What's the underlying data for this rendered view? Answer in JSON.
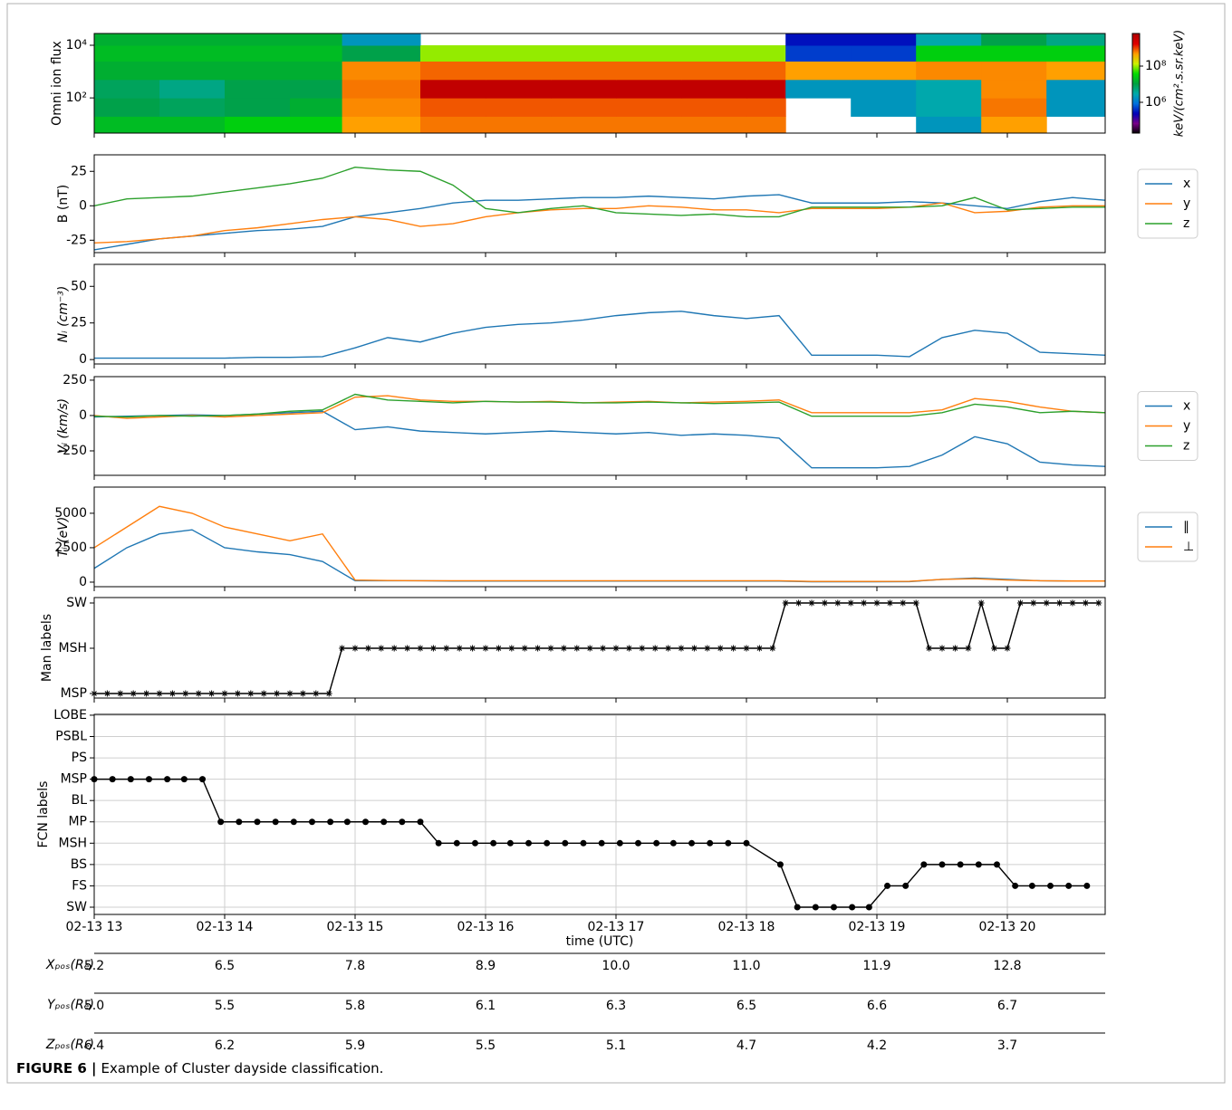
{
  "chart_data": [
    {
      "type": "heatmap",
      "ylabel": "Omni ion flux",
      "yscale": "log",
      "x_bins": [
        13,
        13.5,
        14,
        14.5,
        14.9,
        15.5,
        16,
        16.5,
        17,
        17.5,
        18,
        18.3,
        18.8,
        19.3,
        19.8,
        20.3,
        20.75
      ],
      "y_bins": [
        4.6,
        20,
        100,
        500,
        2500,
        10000,
        28000
      ],
      "values": [
        [
          20000000.0,
          20000000.0,
          30000000.0,
          30000000.0,
          500000000.0,
          700000000.0,
          700000000.0,
          700000000.0,
          700000000.0,
          700000000.0,
          700000000.0,
          null,
          null,
          2000000.0,
          500000000.0,
          null
        ],
        [
          10000000.0,
          8000000.0,
          10000000.0,
          15000000.0,
          600000000.0,
          900000000.0,
          900000000.0,
          900000000.0,
          900000000.0,
          900000000.0,
          900000000.0,
          null,
          2000000.0,
          3000000.0,
          700000000.0,
          2000000.0
        ],
        [
          8000000.0,
          5000000.0,
          10000000.0,
          10000000.0,
          700000000.0,
          4000000000.0,
          4000000000.0,
          4000000000.0,
          4000000000.0,
          4000000000.0,
          4000000000.0,
          2000000.0,
          2000000.0,
          3000000.0,
          600000000.0,
          2000000.0
        ],
        [
          15000000.0,
          15000000.0,
          15000000.0,
          15000000.0,
          600000000.0,
          800000000.0,
          800000000.0,
          800000000.0,
          800000000.0,
          800000000.0,
          800000000.0,
          500000000.0,
          500000000.0,
          600000000.0,
          600000000.0,
          500000000.0
        ],
        [
          20000000.0,
          20000000.0,
          20000000.0,
          20000000.0,
          10000000.0,
          100000000.0,
          100000000.0,
          100000000.0,
          100000000.0,
          100000000.0,
          100000000.0,
          500000.0,
          500000.0,
          30000000.0,
          30000000.0,
          30000000.0
        ],
        [
          15000000.0,
          15000000.0,
          15000000.0,
          15000000.0,
          2000000.0,
          null,
          null,
          null,
          null,
          null,
          null,
          300000.0,
          300000.0,
          3000000.0,
          10000000.0,
          5000000.0
        ]
      ],
      "xlim": [
        13,
        20.75
      ],
      "ylim": [
        4.6,
        28000
      ],
      "xticks": [
        13,
        14,
        15,
        16,
        17,
        18,
        19,
        20
      ],
      "yticks": [
        {
          "value": 100,
          "label": "10²"
        },
        {
          "value": 10000,
          "label": "10⁴"
        }
      ],
      "zscale": "log",
      "zlim": [
        20000,
        6300000000
      ],
      "zticks": [
        {
          "value": 1000000,
          "label": "10⁶"
        },
        {
          "value": 100000000,
          "label": "10⁸"
        }
      ],
      "zlabel": "keV/(cm².s.sr.keV)",
      "colormap": [
        "#000000",
        "#780088",
        "#0000b8",
        "#0070dd",
        "#00aaaa",
        "#00a040",
        "#00dd00",
        "#ccf000",
        "#ffa000",
        "#e00000",
        "#b00000"
      ],
      "over_color": "#c8c8c8"
    },
    {
      "type": "line",
      "ylabel": "B (nT)",
      "legend": "right",
      "x": [
        13,
        13.25,
        13.5,
        13.75,
        14,
        14.25,
        14.5,
        14.75,
        15,
        15.25,
        15.5,
        15.75,
        16,
        16.25,
        16.5,
        16.75,
        17,
        17.25,
        17.5,
        17.75,
        18,
        18.25,
        18.5,
        18.75,
        19,
        19.25,
        19.5,
        19.75,
        20,
        20.25,
        20.5,
        20.75
      ],
      "series": [
        {
          "name": "x",
          "color": "#1f77b4",
          "values": [
            -32,
            -28,
            -24,
            -22,
            -20,
            -18,
            -17,
            -15,
            -8,
            -5,
            -2,
            2,
            4,
            4,
            5,
            6,
            6,
            7,
            6,
            5,
            7,
            8,
            2,
            2,
            2,
            3,
            2,
            0,
            -2,
            3,
            6,
            4
          ]
        },
        {
          "name": "y",
          "color": "#ff7f0e",
          "values": [
            -27,
            -26,
            -24,
            -22,
            -18,
            -16,
            -13,
            -10,
            -8,
            -10,
            -15,
            -13,
            -8,
            -5,
            -3,
            -2,
            -2,
            0,
            -1,
            -3,
            -3,
            -5,
            -2,
            -2,
            -2,
            -1,
            2,
            -5,
            -4,
            -1,
            0,
            0
          ]
        },
        {
          "name": "z",
          "color": "#2ca02c",
          "values": [
            0,
            5,
            6,
            7,
            10,
            13,
            16,
            20,
            28,
            26,
            25,
            15,
            -2,
            -5,
            -2,
            0,
            -5,
            -6,
            -7,
            -6,
            -8,
            -8,
            -1,
            -1,
            -1,
            -1,
            0,
            6,
            -3,
            -2,
            -1,
            -1
          ]
        }
      ],
      "xlim": [
        13,
        20.75
      ],
      "ylim": [
        -34,
        37
      ],
      "xticks": [
        13,
        14,
        15,
        16,
        17,
        18,
        19,
        20
      ],
      "yticks": [
        -25,
        0,
        25
      ]
    },
    {
      "type": "line",
      "ylabel": "Nᵢ (cm⁻³)",
      "x": [
        13,
        13.25,
        13.5,
        13.75,
        14,
        14.25,
        14.5,
        14.75,
        15,
        15.25,
        15.5,
        15.75,
        16,
        16.25,
        16.5,
        16.75,
        17,
        17.25,
        17.5,
        17.75,
        18,
        18.25,
        18.5,
        18.75,
        19,
        19.25,
        19.5,
        19.75,
        20,
        20.25,
        20.5,
        20.75
      ],
      "series": [
        {
          "color": "#1f77b4",
          "values": [
            1,
            1,
            1,
            1,
            1,
            1.5,
            1.5,
            2,
            8,
            15,
            12,
            18,
            22,
            24,
            25,
            27,
            30,
            32,
            33,
            30,
            28,
            30,
            3,
            3,
            3,
            2,
            15,
            20,
            18,
            5,
            4,
            3
          ]
        }
      ],
      "xlim": [
        13,
        20.75
      ],
      "ylim": [
        -3,
        65
      ],
      "xticks": [
        13,
        14,
        15,
        16,
        17,
        18,
        19,
        20
      ],
      "yticks": [
        0,
        25,
        50
      ]
    },
    {
      "type": "line",
      "ylabel": "Vᵢ (km/s)",
      "legend": "right",
      "x": [
        13,
        13.25,
        13.5,
        13.75,
        14,
        14.25,
        14.5,
        14.75,
        15,
        15.25,
        15.5,
        15.75,
        16,
        16.25,
        16.5,
        16.75,
        17,
        17.25,
        17.5,
        17.75,
        18,
        18.25,
        18.5,
        18.75,
        19,
        19.25,
        19.5,
        19.75,
        20,
        20.25,
        20.5,
        20.75
      ],
      "series": [
        {
          "name": "x",
          "color": "#1f77b4",
          "values": [
            -10,
            -5,
            0,
            5,
            0,
            10,
            20,
            30,
            -100,
            -80,
            -110,
            -120,
            -130,
            -120,
            -110,
            -120,
            -130,
            -120,
            -140,
            -130,
            -140,
            -160,
            -370,
            -370,
            -370,
            -360,
            -280,
            -150,
            -200,
            -330,
            -350,
            -360
          ]
        },
        {
          "name": "y",
          "color": "#ff7f0e",
          "values": [
            0,
            -20,
            -10,
            0,
            -10,
            0,
            10,
            20,
            130,
            140,
            110,
            100,
            100,
            95,
            100,
            90,
            95,
            100,
            90,
            95,
            100,
            110,
            20,
            20,
            20,
            20,
            40,
            120,
            100,
            60,
            30,
            20
          ]
        },
        {
          "name": "z",
          "color": "#2ca02c",
          "values": [
            -5,
            -10,
            0,
            -5,
            0,
            10,
            30,
            40,
            150,
            110,
            100,
            90,
            100,
            95,
            95,
            90,
            90,
            95,
            90,
            85,
            90,
            95,
            -5,
            -5,
            -5,
            -5,
            20,
            80,
            60,
            20,
            30,
            20
          ]
        }
      ],
      "xlim": [
        13,
        20.75
      ],
      "ylim": [
        -423,
        275
      ],
      "xticks": [
        13,
        14,
        15,
        16,
        17,
        18,
        19,
        20
      ],
      "yticks": [
        -250,
        0,
        250
      ]
    },
    {
      "type": "line",
      "ylabel": "Tᵢ (eV)",
      "legend": "right",
      "x": [
        13,
        13.25,
        13.5,
        13.75,
        14,
        14.25,
        14.5,
        14.75,
        15,
        15.25,
        15.5,
        15.75,
        16,
        16.25,
        16.5,
        16.75,
        17,
        17.25,
        17.5,
        17.75,
        18,
        18.25,
        18.5,
        18.75,
        19,
        19.25,
        19.5,
        19.75,
        20,
        20.25,
        20.5,
        20.75
      ],
      "series": [
        {
          "name": "∥",
          "color": "#1f77b4",
          "values": [
            1000,
            2500,
            3500,
            3800,
            2500,
            2200,
            2000,
            1500,
            100,
            100,
            100,
            80,
            80,
            80,
            80,
            80,
            80,
            80,
            80,
            80,
            80,
            80,
            30,
            30,
            30,
            40,
            200,
            300,
            200,
            100,
            80,
            80
          ]
        },
        {
          "name": "⊥",
          "color": "#ff7f0e",
          "values": [
            2500,
            4000,
            5500,
            5000,
            4000,
            3500,
            3000,
            3500,
            150,
            120,
            100,
            100,
            100,
            100,
            100,
            100,
            100,
            100,
            100,
            100,
            100,
            100,
            50,
            50,
            50,
            60,
            200,
            250,
            150,
            100,
            80,
            80
          ]
        }
      ],
      "xlim": [
        13,
        20.75
      ],
      "ylim": [
        -330,
        6900
      ],
      "xticks": [
        13,
        14,
        15,
        16,
        17,
        18,
        19,
        20
      ],
      "yticks": [
        0,
        2500,
        5000
      ]
    },
    {
      "type": "line",
      "ylabel": "Man labels",
      "marker": "*",
      "x": [
        13,
        13.1,
        13.2,
        13.3,
        13.4,
        13.5,
        13.6,
        13.7,
        13.8,
        13.9,
        14,
        14.1,
        14.2,
        14.3,
        14.4,
        14.5,
        14.6,
        14.7,
        14.8,
        14.9,
        15,
        15.1,
        15.2,
        15.3,
        15.4,
        15.5,
        15.6,
        15.7,
        15.8,
        15.9,
        16,
        16.1,
        16.2,
        16.3,
        16.4,
        16.5,
        16.6,
        16.7,
        16.8,
        16.9,
        17,
        17.1,
        17.2,
        17.3,
        17.4,
        17.5,
        17.6,
        17.7,
        17.8,
        17.9,
        18,
        18.1,
        18.2,
        18.3,
        18.4,
        18.5,
        18.6,
        18.7,
        18.8,
        18.9,
        19,
        19.1,
        19.2,
        19.3,
        19.4,
        19.5,
        19.6,
        19.7,
        19.8,
        19.9,
        20,
        20.1,
        20.2,
        20.3,
        20.4,
        20.5,
        20.6,
        20.7
      ],
      "series": [
        {
          "color": "#000000",
          "values": [
            0,
            0,
            0,
            0,
            0,
            0,
            0,
            0,
            0,
            0,
            0,
            0,
            0,
            0,
            0,
            0,
            0,
            0,
            0,
            1,
            1,
            1,
            1,
            1,
            1,
            1,
            1,
            1,
            1,
            1,
            1,
            1,
            1,
            1,
            1,
            1,
            1,
            1,
            1,
            1,
            1,
            1,
            1,
            1,
            1,
            1,
            1,
            1,
            1,
            1,
            1,
            1,
            1,
            2,
            2,
            2,
            2,
            2,
            2,
            2,
            2,
            2,
            2,
            2,
            1,
            1,
            1,
            1,
            2,
            1,
            1,
            2,
            2,
            2,
            2,
            2,
            2,
            2
          ]
        }
      ],
      "xlim": [
        13,
        20.75
      ],
      "ylim": [
        -0.1,
        2.12
      ],
      "xticks": [
        13,
        14,
        15,
        16,
        17,
        18,
        19,
        20
      ],
      "yticks": [
        {
          "value": 0,
          "label": "MSP"
        },
        {
          "value": 1,
          "label": "MSH"
        },
        {
          "value": 2,
          "label": "SW"
        }
      ]
    },
    {
      "type": "line",
      "ylabel": "FCN labels",
      "xlabel": "time (UTC)",
      "marker": "o",
      "grid": true,
      "x": [
        13,
        13.14,
        13.28,
        13.42,
        13.56,
        13.69,
        13.83,
        13.97,
        14.11,
        14.25,
        14.39,
        14.53,
        14.67,
        14.81,
        14.94,
        15.08,
        15.22,
        15.36,
        15.5,
        15.64,
        15.78,
        15.92,
        16.06,
        16.19,
        16.33,
        16.47,
        16.61,
        16.75,
        16.89,
        17.03,
        17.17,
        17.31,
        17.44,
        17.58,
        17.72,
        17.86,
        18,
        18.26,
        18.39,
        18.53,
        18.67,
        18.81,
        18.94,
        19.08,
        19.22,
        19.36,
        19.5,
        19.64,
        19.78,
        19.92,
        20.06,
        20.19,
        20.33,
        20.47,
        20.61
      ],
      "series": [
        {
          "color": "#000000",
          "values": [
            6,
            6,
            6,
            6,
            6,
            6,
            6,
            4,
            4,
            4,
            4,
            4,
            4,
            4,
            4,
            4,
            4,
            4,
            4,
            3,
            3,
            3,
            3,
            3,
            3,
            3,
            3,
            3,
            3,
            3,
            3,
            3,
            3,
            3,
            3,
            3,
            3,
            2,
            0,
            0,
            0,
            0,
            0,
            1,
            1,
            2,
            2,
            2,
            2,
            2,
            1,
            1,
            1,
            1,
            1
          ]
        }
      ],
      "xlim": [
        13,
        20.75
      ],
      "ylim": [
        -0.34,
        9.04
      ],
      "xticks": [
        {
          "value": 13,
          "label": "02-13 13"
        },
        {
          "value": 14,
          "label": "02-13 14"
        },
        {
          "value": 15,
          "label": "02-13 15"
        },
        {
          "value": 16,
          "label": "02-13 16"
        },
        {
          "value": 17,
          "label": "02-13 17"
        },
        {
          "value": 18,
          "label": "02-13 18"
        },
        {
          "value": 19,
          "label": "02-13 19"
        },
        {
          "value": 20,
          "label": "02-13 20"
        }
      ],
      "yticks": [
        {
          "value": 0,
          "label": "SW"
        },
        {
          "value": 1,
          "label": "FS"
        },
        {
          "value": 2,
          "label": "BS"
        },
        {
          "value": 3,
          "label": "MSH"
        },
        {
          "value": 4,
          "label": "MP"
        },
        {
          "value": 5,
          "label": "BL"
        },
        {
          "value": 6,
          "label": "MSP"
        },
        {
          "value": 7,
          "label": "PS"
        },
        {
          "value": 8,
          "label": "PSBL"
        },
        {
          "value": 9,
          "label": "LOBE"
        }
      ]
    }
  ],
  "position_table": {
    "rows": [
      {
        "label": "Xₚₒₛ(Rₑ)",
        "values": [
          "5.2",
          "6.5",
          "7.8",
          "8.9",
          "10.0",
          "11.0",
          "11.9",
          "12.8"
        ]
      },
      {
        "label": "Yₚₒₛ(Rₑ)",
        "values": [
          "5.0",
          "5.5",
          "5.8",
          "6.1",
          "6.3",
          "6.5",
          "6.6",
          "6.7"
        ]
      },
      {
        "label": "Zₚₒₛ(Rₑ)",
        "values": [
          "6.4",
          "6.2",
          "5.9",
          "5.5",
          "5.1",
          "4.7",
          "4.2",
          "3.7"
        ]
      }
    ]
  },
  "caption": {
    "figure_label": "FIGURE 6 |",
    "text": "Example of Cluster dayside classification."
  }
}
